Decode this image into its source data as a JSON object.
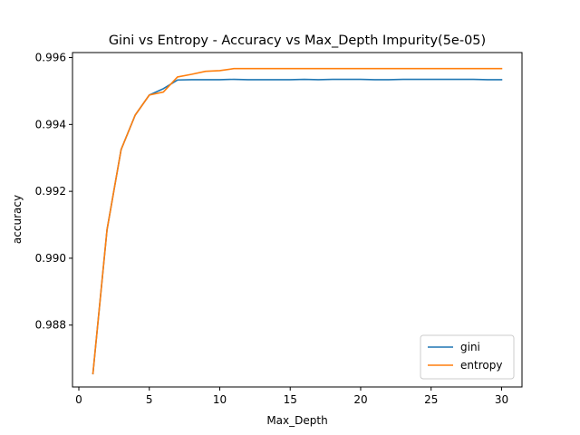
{
  "chart_data": {
    "type": "line",
    "title": "Gini vs Entropy - Accuracy vs Max_Depth Impurity(5e-05)",
    "xlabel": "Max_Depth",
    "ylabel": "accuracy",
    "xlim": [
      -0.45,
      31.45
    ],
    "ylim": [
      0.98615,
      0.99615
    ],
    "xticks": [
      0,
      5,
      10,
      15,
      20,
      25,
      30
    ],
    "yticks": [
      0.988,
      0.99,
      0.992,
      0.994,
      0.996
    ],
    "ytick_labels": [
      "0.988",
      "0.990",
      "0.992",
      "0.994",
      "0.996"
    ],
    "grid": false,
    "legend_position": "lower right",
    "x": [
      1,
      2,
      3,
      4,
      5,
      6,
      7,
      8,
      9,
      10,
      11,
      12,
      13,
      14,
      15,
      16,
      17,
      18,
      19,
      20,
      21,
      22,
      23,
      24,
      25,
      26,
      27,
      28,
      29,
      30
    ],
    "series": [
      {
        "name": "gini",
        "color": "#1f77b4",
        "values": [
          0.98655,
          0.99085,
          0.99325,
          0.99428,
          0.99488,
          0.99507,
          0.99533,
          0.99534,
          0.99534,
          0.99534,
          0.99535,
          0.99534,
          0.99534,
          0.99534,
          0.99534,
          0.99535,
          0.99534,
          0.99535,
          0.99535,
          0.99535,
          0.99534,
          0.99534,
          0.99535,
          0.99535,
          0.99535,
          0.99535,
          0.99535,
          0.99535,
          0.99534,
          0.99534
        ]
      },
      {
        "name": "entropy",
        "color": "#ff7f0e",
        "values": [
          0.98655,
          0.99085,
          0.99325,
          0.99428,
          0.99488,
          0.99497,
          0.99542,
          0.9955,
          0.99559,
          0.99561,
          0.99567,
          0.99567,
          0.99567,
          0.99567,
          0.99567,
          0.99567,
          0.99567,
          0.99567,
          0.99567,
          0.99567,
          0.99567,
          0.99567,
          0.99567,
          0.99567,
          0.99567,
          0.99567,
          0.99567,
          0.99567,
          0.99567,
          0.99567
        ]
      }
    ]
  }
}
